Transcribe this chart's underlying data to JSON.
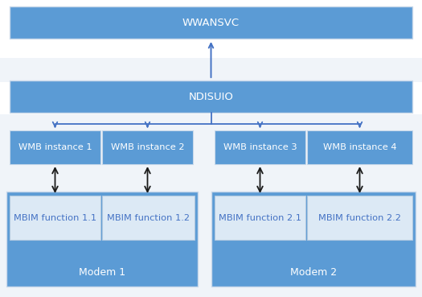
{
  "background_color": "#f0f4f9",
  "stripe_color": "#ffffff",
  "box_color_dark": "#5b9bd5",
  "box_color_light": "#dce9f5",
  "text_color_white": "#ffffff",
  "text_color_blue": "#4472c4",
  "arrow_color_blue": "#4472c4",
  "arrow_color_black": "#1a1a1a",
  "wwansvc_label": "WWANSVC",
  "ndisuio_label": "NDISUIO",
  "wmb_labels": [
    "WMB instance 1",
    "WMB instance 2",
    "WMB instance 3",
    "WMB instance 4"
  ],
  "mbim_labels": [
    "MBIM function 1.1",
    "MBIM function 1.2",
    "MBIM function 2.1",
    "MBIM function 2.2"
  ],
  "modem_labels": [
    "Modem 1",
    "Modem 2"
  ],
  "font_size_main": 9.5,
  "font_size_box": 8.2,
  "font_size_modem": 9
}
